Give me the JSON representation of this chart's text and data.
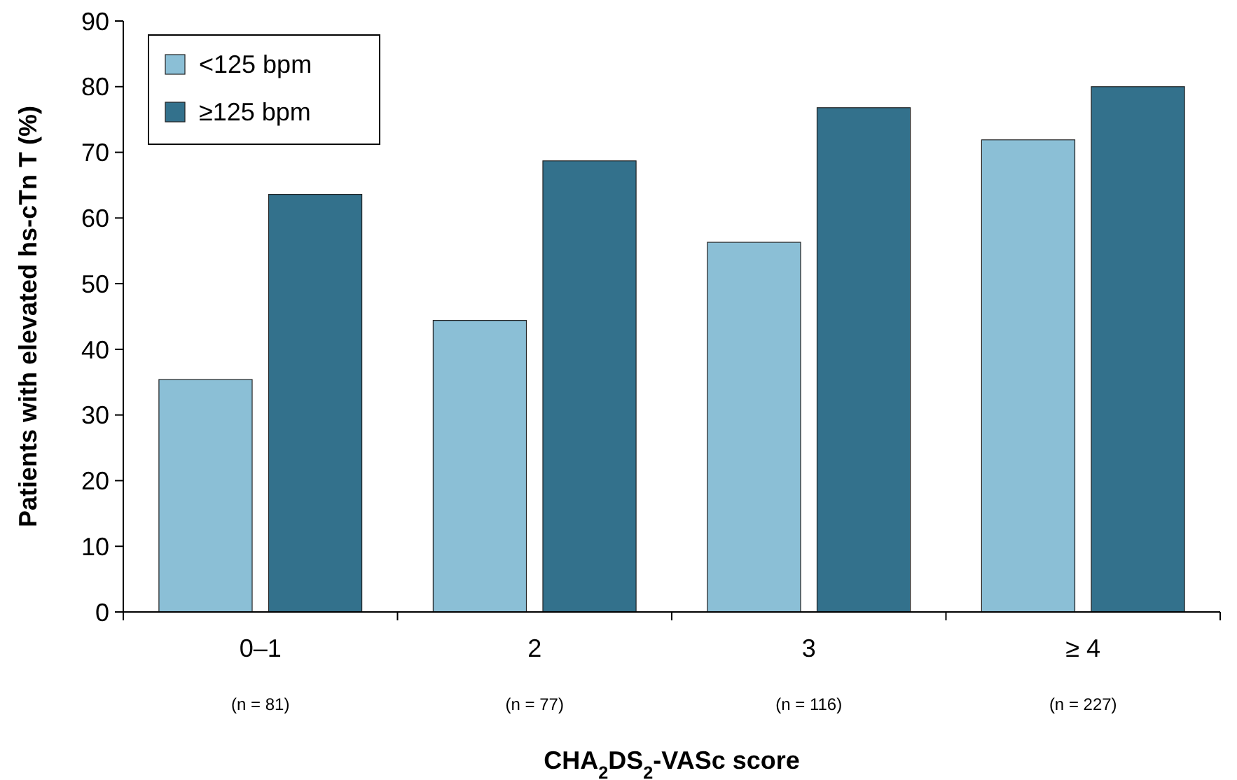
{
  "chart_data": {
    "type": "bar",
    "xlabel": "CHA$_{2}$DS$_{2}$-VASc score",
    "ylabel": "Patients with elevated hs-cTn T (%)",
    "categories": [
      "0–1",
      "2",
      "3",
      "≥ 4"
    ],
    "series": [
      {
        "name": "<125 bpm",
        "color": "#8bbfd6",
        "values": [
          35.4,
          44.4,
          56.3,
          71.9
        ]
      },
      {
        "name": "≥125 bpm",
        "color": "#33718c",
        "values": [
          63.6,
          68.7,
          76.8,
          80
        ]
      }
    ],
    "annotations": [
      "(n = 81)",
      "(n = 77)",
      "(n = 116)",
      "(n = 227)"
    ],
    "ylim": [
      0,
      90
    ],
    "yticks": [
      0,
      10,
      20,
      30,
      40,
      50,
      60,
      70,
      80,
      90
    ],
    "grid": false,
    "legend": "top left"
  }
}
